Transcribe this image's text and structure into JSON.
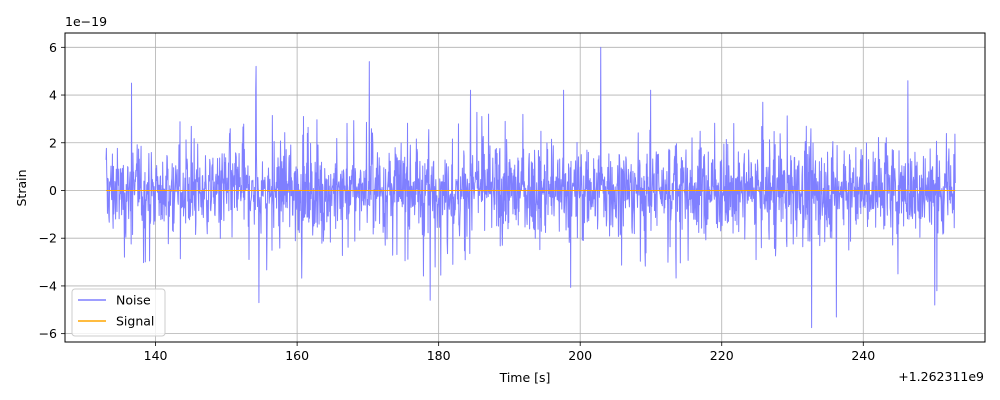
{
  "chart_data": {
    "type": "line",
    "xlabel": "Time [s]",
    "ylabel": "Strain",
    "x_offset_label": "+1.262311e9",
    "y_scale_label": "1e−19",
    "xlim": [
      127.2,
      257.2
    ],
    "ylim": [
      -6.35,
      6.6
    ],
    "x_ticks": [
      140,
      160,
      180,
      200,
      220,
      240
    ],
    "x_tick_labels": [
      "140",
      "160",
      "180",
      "200",
      "220",
      "240"
    ],
    "y_ticks": [
      -6,
      -4,
      -2,
      0,
      2,
      4,
      6
    ],
    "y_tick_labels": [
      "−6",
      "−4",
      "−2",
      "0",
      "2",
      "4",
      "6"
    ],
    "grid": true,
    "legend_placement": "lower-left",
    "series": [
      {
        "name": "Noise",
        "color": "#7f7fff",
        "x_range": [
          133.0,
          253.0
        ],
        "typical_amplitude": 1.3,
        "peak_max": 6.0,
        "peak_min": -5.75,
        "extremes": [
          {
            "x": 202.9,
            "y": 6.0
          },
          {
            "x": 154.2,
            "y": 5.2
          },
          {
            "x": 170.2,
            "y": 5.4
          },
          {
            "x": 136.6,
            "y": 4.5
          },
          {
            "x": 246.3,
            "y": 4.6
          },
          {
            "x": 154.6,
            "y": -4.7
          },
          {
            "x": 178.8,
            "y": -4.6
          },
          {
            "x": 232.7,
            "y": -5.75
          },
          {
            "x": 236.2,
            "y": -5.3
          },
          {
            "x": 250.1,
            "y": -4.8
          }
        ]
      },
      {
        "name": "Signal",
        "color": "#ffa500",
        "x": [
          133.0,
          253.0
        ],
        "y": [
          0.0,
          0.0
        ]
      }
    ]
  }
}
